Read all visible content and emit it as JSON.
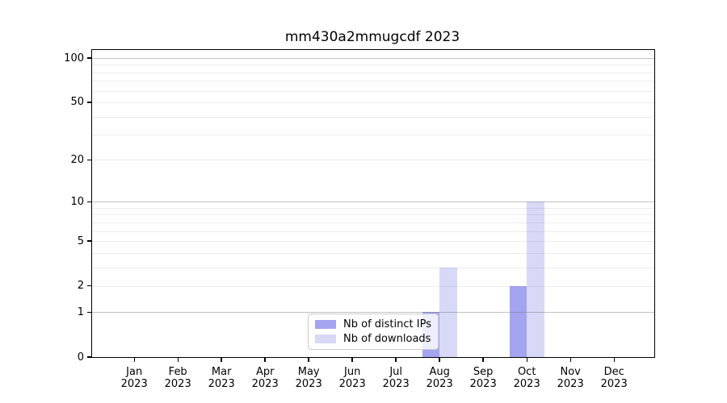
{
  "chart_data": {
    "type": "bar",
    "title": "mm430a2mmugcdf 2023",
    "xlabel": "",
    "ylabel": "",
    "categories": [
      "Jan 2023",
      "Feb 2023",
      "Mar 2023",
      "Apr 2023",
      "May 2023",
      "Jun 2023",
      "Jul 2023",
      "Aug 2023",
      "Sep 2023",
      "Oct 2023",
      "Nov 2023",
      "Dec 2023"
    ],
    "series": [
      {
        "name": "Nb of distinct IPs",
        "color": "#a4a4f0",
        "values": [
          0,
          0,
          0,
          0,
          0,
          0,
          0,
          1,
          0,
          2,
          0,
          0
        ]
      },
      {
        "name": "Nb of downloads",
        "color": "#d8d8f7",
        "values": [
          0,
          0,
          0,
          0,
          0,
          0,
          0,
          3,
          0,
          10,
          0,
          0
        ]
      }
    ],
    "y_axis": {
      "scale": "log1p",
      "tick_labels": [
        0,
        1,
        2,
        5,
        10,
        20,
        50,
        100
      ],
      "grid_major": [
        1,
        10,
        100
      ],
      "grid_minor": [
        2,
        3,
        4,
        5,
        6,
        7,
        8,
        9,
        20,
        30,
        40,
        50,
        60,
        70,
        80,
        90
      ],
      "ylim": [
        0,
        113
      ]
    },
    "legend": {
      "position": "lower center"
    },
    "grid": "on"
  }
}
